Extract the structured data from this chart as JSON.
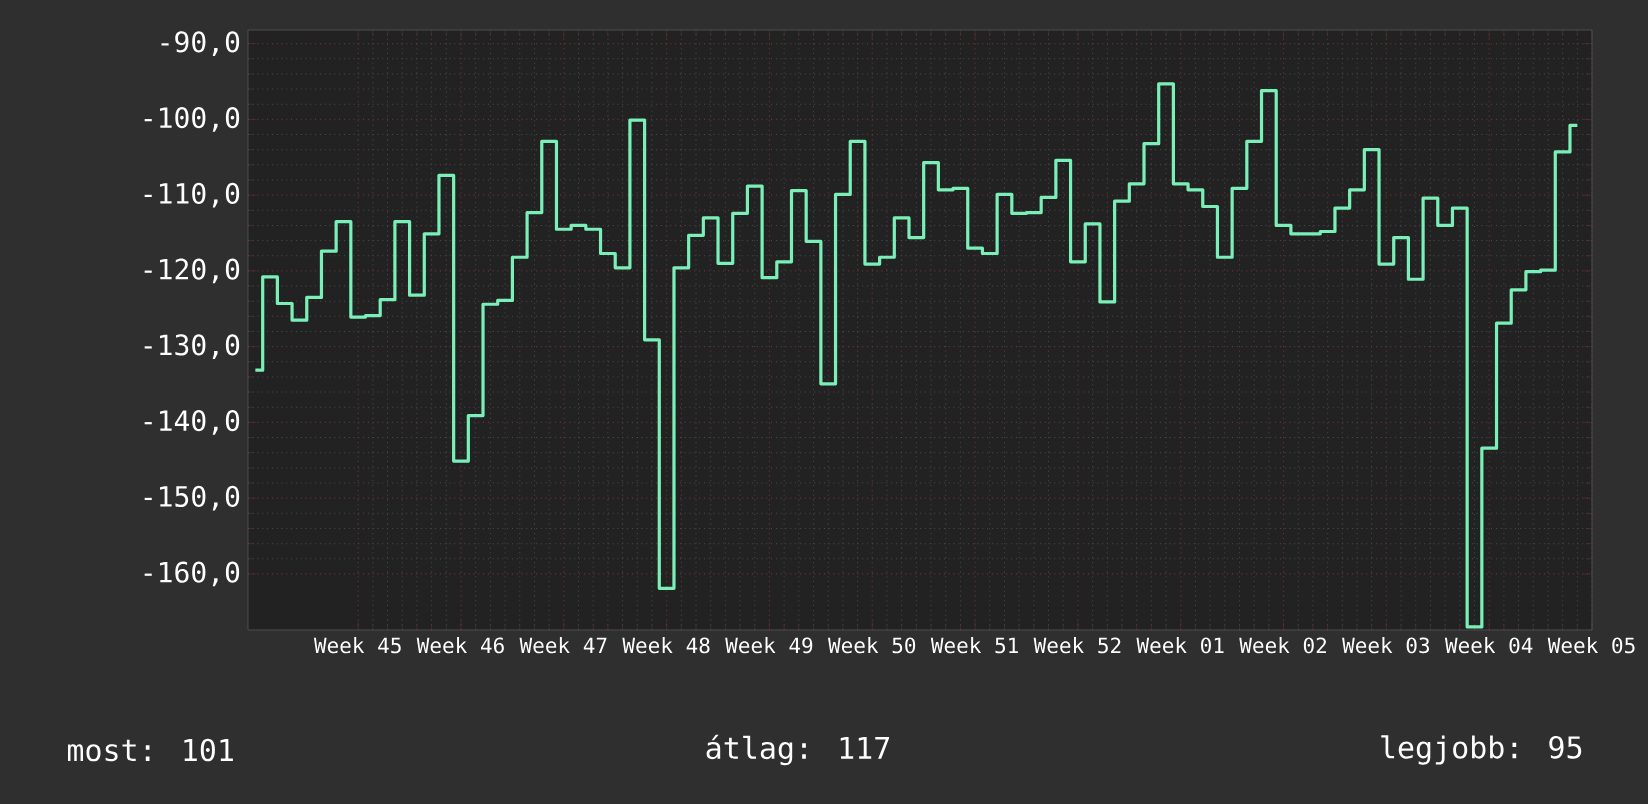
{
  "chart_data": {
    "type": "step",
    "categories": [
      null,
      null,
      null,
      null,
      null,
      null,
      null,
      "Week 45",
      null,
      null,
      null,
      null,
      null,
      null,
      "Week 46",
      null,
      null,
      null,
      null,
      null,
      null,
      "Week 47",
      null,
      null,
      null,
      null,
      null,
      null,
      "Week 48",
      null,
      null,
      null,
      null,
      null,
      null,
      "Week 49",
      null,
      null,
      null,
      null,
      null,
      null,
      "Week 50",
      null,
      null,
      null,
      null,
      null,
      null,
      "Week 51",
      null,
      null,
      null,
      null,
      null,
      null,
      "Week 52",
      null,
      null,
      null,
      null,
      null,
      null,
      "Week 01",
      null,
      null,
      null,
      null,
      null,
      null,
      "Week 02",
      null,
      null,
      null,
      null,
      null,
      null,
      "Week 03",
      null,
      null,
      null,
      null,
      null,
      null,
      "Week 04",
      null,
      null,
      null,
      null,
      null,
      null,
      "Week 05"
    ],
    "series": [
      {
        "color": "#7af0b8",
        "values": [
          -133.1,
          -120.8,
          -124.3,
          -126.5,
          -123.5,
          -117.4,
          -113.5,
          -126.1,
          -125.9,
          -123.8,
          -113.5,
          -123.2,
          -115.1,
          -107.4,
          -145.1,
          -139.1,
          -124.4,
          -123.9,
          -118.2,
          -112.3,
          -102.9,
          -114.5,
          -114.0,
          -114.5,
          -117.7,
          -119.6,
          -100.1,
          -129.1,
          -161.9,
          -119.6,
          -115.3,
          -113.0,
          -119.0,
          -112.4,
          -108.8,
          -120.9,
          -118.8,
          -109.4,
          -116.1,
          -134.9,
          -109.9,
          -102.9,
          -119.1,
          -118.2,
          -113.0,
          -115.6,
          -105.7,
          -109.3,
          -109.1,
          -117.0,
          -117.7,
          -109.9,
          -112.4,
          -112.3,
          -110.3,
          -105.4,
          -118.8,
          -113.8,
          -124.1,
          -110.8,
          -108.5,
          -103.2,
          -95.3,
          -108.5,
          -109.3,
          -111.5,
          -118.2,
          -109.1,
          -102.9,
          -96.2,
          -114.0,
          -115.1,
          -115.1,
          -114.8,
          -111.7,
          -109.3,
          -104.0,
          -119.1,
          -115.6,
          -121.1,
          -110.4,
          -114.0,
          -111.7,
          -167.0,
          -143.4,
          -126.9,
          -122.5,
          -120.1,
          -119.9,
          -104.3,
          -100.8,
          null
        ]
      }
    ],
    "ylim": [
      -167.4,
      -88.2
    ],
    "yticks": [
      {
        "value": -90,
        "label": "-90,0"
      },
      {
        "value": -100,
        "label": "-100,0"
      },
      {
        "value": -110,
        "label": "-110,0"
      },
      {
        "value": -120,
        "label": "-120,0"
      },
      {
        "value": -130,
        "label": "-130,0"
      },
      {
        "value": -140,
        "label": "-140,0"
      },
      {
        "value": -150,
        "label": "-150,0"
      },
      {
        "value": -160,
        "label": "-160,0"
      }
    ],
    "grid": true,
    "annotations": [
      "most: 101",
      "átlag: 117",
      "legjobb: 95"
    ]
  }
}
